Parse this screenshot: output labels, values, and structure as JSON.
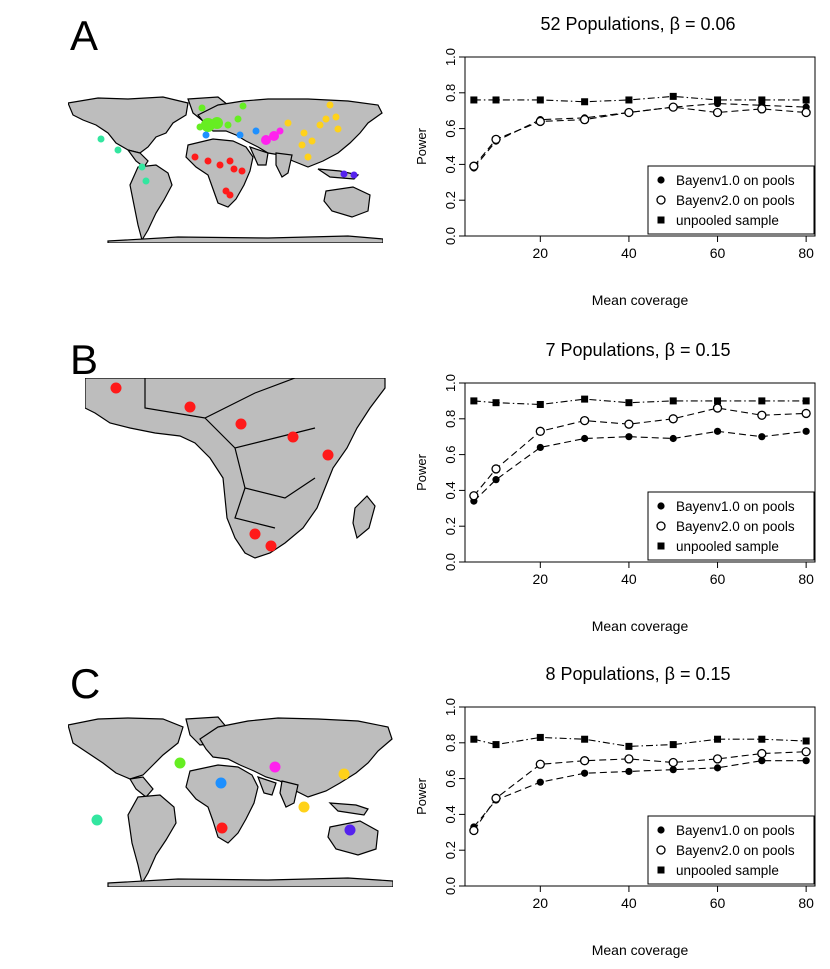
{
  "panels": [
    {
      "letter": "A",
      "title": "52 Populations, β = 0.06"
    },
    {
      "letter": "B",
      "title": "7 Populations, β = 0.15"
    },
    {
      "letter": "C",
      "title": "8 Populations, β = 0.15"
    }
  ],
  "colors": {
    "land": "#bdbdbd",
    "border": "#000000",
    "red": "#ff1a1a",
    "green": "#66ee22",
    "cyan": "#33e6a0",
    "blue": "#1e90ff",
    "magenta": "#ff22ee",
    "yellow": "#ffd21a",
    "purple": "#5522ee"
  },
  "chart_data": [
    {
      "type": "line",
      "title": "52 Populations, β = 0.06",
      "xlabel": "Mean coverage",
      "ylabel": "Power",
      "x": [
        5,
        10,
        20,
        30,
        40,
        50,
        60,
        70,
        80
      ],
      "xticks": [
        20,
        40,
        60,
        80
      ],
      "yticks": [
        0.0,
        0.2,
        0.4,
        0.6,
        0.8,
        1.0
      ],
      "xlim": [
        3,
        82
      ],
      "ylim": [
        0,
        1
      ],
      "legend_position": "bottom-right",
      "series": [
        {
          "name": "Bayenv1.0 on pools",
          "marker": "filled-circle",
          "values": [
            0.38,
            0.53,
            0.65,
            0.66,
            0.69,
            0.72,
            0.74,
            0.73,
            0.72
          ]
        },
        {
          "name": "Bayenv2.0 on pools",
          "marker": "open-circle",
          "values": [
            0.39,
            0.54,
            0.64,
            0.65,
            0.69,
            0.72,
            0.69,
            0.71,
            0.69
          ]
        },
        {
          "name": "unpooled sample",
          "marker": "filled-square",
          "values": [
            0.76,
            0.76,
            0.76,
            0.75,
            0.76,
            0.78,
            0.76,
            0.76,
            0.76
          ]
        }
      ]
    },
    {
      "type": "line",
      "title": "7 Populations, β = 0.15",
      "xlabel": "Mean coverage",
      "ylabel": "Power",
      "x": [
        5,
        10,
        20,
        30,
        40,
        50,
        60,
        70,
        80
      ],
      "xticks": [
        20,
        40,
        60,
        80
      ],
      "yticks": [
        0.0,
        0.2,
        0.4,
        0.6,
        0.8,
        1.0
      ],
      "xlim": [
        3,
        82
      ],
      "ylim": [
        0,
        1
      ],
      "legend_position": "bottom-right",
      "series": [
        {
          "name": "Bayenv1.0 on pools",
          "marker": "filled-circle",
          "values": [
            0.34,
            0.46,
            0.64,
            0.69,
            0.7,
            0.69,
            0.73,
            0.7,
            0.73
          ]
        },
        {
          "name": "Bayenv2.0 on pools",
          "marker": "open-circle",
          "values": [
            0.37,
            0.52,
            0.73,
            0.79,
            0.77,
            0.8,
            0.86,
            0.82,
            0.83
          ]
        },
        {
          "name": "unpooled sample",
          "marker": "filled-square",
          "values": [
            0.9,
            0.89,
            0.88,
            0.91,
            0.89,
            0.9,
            0.9,
            0.9,
            0.9
          ]
        }
      ]
    },
    {
      "type": "line",
      "title": "8 Populations, β = 0.15",
      "xlabel": "Mean coverage",
      "ylabel": "Power",
      "x": [
        5,
        10,
        20,
        30,
        40,
        50,
        60,
        70,
        80
      ],
      "xticks": [
        20,
        40,
        60,
        80
      ],
      "yticks": [
        0.0,
        0.2,
        0.4,
        0.6,
        0.8,
        1.0
      ],
      "xlim": [
        3,
        82
      ],
      "ylim": [
        0,
        1
      ],
      "legend_position": "bottom-right",
      "series": [
        {
          "name": "Bayenv1.0 on pools",
          "marker": "filled-circle",
          "values": [
            0.33,
            0.48,
            0.58,
            0.63,
            0.64,
            0.65,
            0.66,
            0.7,
            0.7
          ]
        },
        {
          "name": "Bayenv2.0 on pools",
          "marker": "open-circle",
          "values": [
            0.31,
            0.49,
            0.68,
            0.7,
            0.71,
            0.69,
            0.71,
            0.74,
            0.75
          ]
        },
        {
          "name": "unpooled sample",
          "marker": "filled-square",
          "values": [
            0.82,
            0.79,
            0.83,
            0.82,
            0.78,
            0.79,
            0.82,
            0.82,
            0.81
          ]
        }
      ]
    }
  ]
}
